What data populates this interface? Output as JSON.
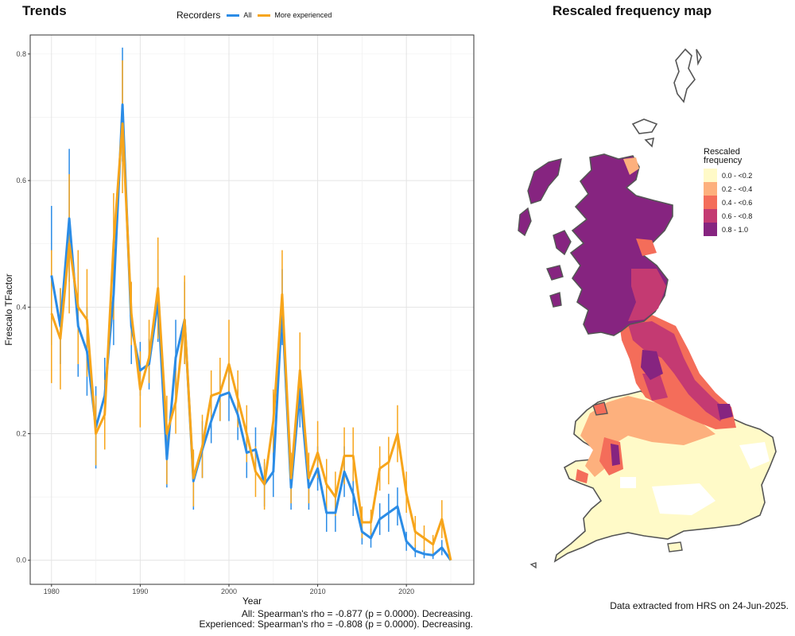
{
  "chart_title": "Trends",
  "map_title": "Rescaled frequency map",
  "caption": "Data extracted from HRS on 24-Jun-2025.",
  "stats": [
    "All: Spearman's rho = -0.877 (p = 0.0000). Decreasing.",
    "Experienced: Spearman's rho = -0.808 (p = 0.0000). Decreasing."
  ],
  "legend": {
    "title": "Recorders",
    "items": [
      "All",
      "More experienced"
    ]
  },
  "map_legend": {
    "title": "Rescaled frequency",
    "classes": [
      {
        "label": "0.0 - <0.2",
        "color": "#FFFAC8"
      },
      {
        "label": "0.2 - <0.4",
        "color": "#FDB07D"
      },
      {
        "label": "0.4 - <0.6",
        "color": "#F46D5A"
      },
      {
        "label": "0.6 - <0.8",
        "color": "#C43A72"
      },
      {
        "label": "0.8 - 1.0",
        "color": "#862480"
      }
    ]
  },
  "chart_data": {
    "type": "line",
    "xlabel": "Year",
    "ylabel": "Frescalo TFactor",
    "xlim": [
      1977.6,
      2027.6
    ],
    "ylim": [
      -0.038,
      0.83
    ],
    "xticks": [
      1980,
      1990,
      2000,
      2010,
      2020
    ],
    "yticks": [
      0.0,
      0.2,
      0.4,
      0.6,
      0.8
    ],
    "grid": true,
    "series": [
      {
        "name": "All",
        "color": "#2B8CE6",
        "points": [
          [
            1980,
            0.45,
            0.34,
            0.56
          ],
          [
            1981,
            0.37,
            0.31,
            0.43
          ],
          [
            1982,
            0.54,
            0.44,
            0.65
          ],
          [
            1983,
            0.37,
            0.29,
            0.45
          ],
          [
            1984,
            0.33,
            0.26,
            0.4
          ],
          [
            1985,
            0.21,
            0.145,
            0.275
          ],
          [
            1986,
            0.26,
            0.2,
            0.32
          ],
          [
            1987,
            0.42,
            0.34,
            0.51
          ],
          [
            1988,
            0.72,
            0.63,
            0.81
          ],
          [
            1989,
            0.37,
            0.31,
            0.44
          ],
          [
            1990,
            0.3,
            0.26,
            0.345
          ],
          [
            1991,
            0.31,
            0.27,
            0.35
          ],
          [
            1992,
            0.41,
            0.345,
            0.475
          ],
          [
            1993,
            0.16,
            0.115,
            0.205
          ],
          [
            1994,
            0.32,
            0.26,
            0.38
          ],
          [
            1995,
            0.38,
            0.31,
            0.44
          ],
          [
            1996,
            0.125,
            0.08,
            0.17
          ],
          [
            1997,
            0.175,
            0.13,
            0.22
          ],
          [
            1998,
            0.22,
            0.185,
            0.255
          ],
          [
            1999,
            0.26,
            0.22,
            0.3
          ],
          [
            2000,
            0.265,
            0.22,
            0.31
          ],
          [
            2001,
            0.23,
            0.19,
            0.27
          ],
          [
            2002,
            0.17,
            0.13,
            0.21
          ],
          [
            2003,
            0.175,
            0.14,
            0.21
          ],
          [
            2004,
            0.12,
            0.085,
            0.155
          ],
          [
            2005,
            0.14,
            0.1,
            0.18
          ],
          [
            2006,
            0.4,
            0.34,
            0.46
          ],
          [
            2007,
            0.115,
            0.08,
            0.155
          ],
          [
            2008,
            0.27,
            0.21,
            0.33
          ],
          [
            2009,
            0.115,
            0.08,
            0.15
          ],
          [
            2010,
            0.145,
            0.11,
            0.18
          ],
          [
            2011,
            0.075,
            0.045,
            0.105
          ],
          [
            2012,
            0.075,
            0.045,
            0.105
          ],
          [
            2013,
            0.14,
            0.1,
            0.18
          ],
          [
            2014,
            0.105,
            0.07,
            0.14
          ],
          [
            2015,
            0.045,
            0.025,
            0.065
          ],
          [
            2016,
            0.035,
            0.02,
            0.05
          ],
          [
            2017,
            0.065,
            0.04,
            0.09
          ],
          [
            2018,
            0.075,
            0.045,
            0.105
          ],
          [
            2019,
            0.085,
            0.055,
            0.115
          ],
          [
            2020,
            0.03,
            0.015,
            0.045
          ],
          [
            2021,
            0.015,
            0.005,
            0.025
          ],
          [
            2022,
            0.01,
            0.003,
            0.017
          ],
          [
            2023,
            0.008,
            0.002,
            0.014
          ],
          [
            2024,
            0.02,
            0.008,
            0.032
          ],
          [
            2025,
            0.0,
            0.0,
            0.0
          ]
        ]
      },
      {
        "name": "More experienced",
        "color": "#F7A51B",
        "points": [
          [
            1980,
            0.39,
            0.28,
            0.49
          ],
          [
            1981,
            0.35,
            0.27,
            0.43
          ],
          [
            1982,
            0.5,
            0.39,
            0.61
          ],
          [
            1983,
            0.4,
            0.31,
            0.49
          ],
          [
            1984,
            0.38,
            0.29,
            0.46
          ],
          [
            1985,
            0.2,
            0.15,
            0.26
          ],
          [
            1986,
            0.23,
            0.175,
            0.285
          ],
          [
            1987,
            0.5,
            0.38,
            0.58
          ],
          [
            1988,
            0.69,
            0.58,
            0.79
          ],
          [
            1989,
            0.39,
            0.34,
            0.44
          ],
          [
            1990,
            0.27,
            0.21,
            0.33
          ],
          [
            1991,
            0.32,
            0.28,
            0.38
          ],
          [
            1992,
            0.43,
            0.35,
            0.51
          ],
          [
            1993,
            0.2,
            0.12,
            0.26
          ],
          [
            1994,
            0.25,
            0.2,
            0.3
          ],
          [
            1995,
            0.38,
            0.31,
            0.45
          ],
          [
            1996,
            0.13,
            0.085,
            0.175
          ],
          [
            1997,
            0.18,
            0.13,
            0.23
          ],
          [
            1998,
            0.26,
            0.22,
            0.3
          ],
          [
            1999,
            0.265,
            0.22,
            0.32
          ],
          [
            2000,
            0.31,
            0.26,
            0.38
          ],
          [
            2001,
            0.255,
            0.21,
            0.3
          ],
          [
            2002,
            0.2,
            0.155,
            0.245
          ],
          [
            2003,
            0.14,
            0.1,
            0.18
          ],
          [
            2004,
            0.12,
            0.08,
            0.16
          ],
          [
            2005,
            0.22,
            0.17,
            0.27
          ],
          [
            2006,
            0.42,
            0.36,
            0.49
          ],
          [
            2007,
            0.13,
            0.09,
            0.17
          ],
          [
            2008,
            0.3,
            0.24,
            0.36
          ],
          [
            2009,
            0.13,
            0.09,
            0.17
          ],
          [
            2010,
            0.17,
            0.13,
            0.22
          ],
          [
            2011,
            0.12,
            0.08,
            0.16
          ],
          [
            2012,
            0.1,
            0.07,
            0.14
          ],
          [
            2013,
            0.165,
            0.12,
            0.21
          ],
          [
            2014,
            0.165,
            0.125,
            0.21
          ],
          [
            2015,
            0.06,
            0.035,
            0.085
          ],
          [
            2016,
            0.06,
            0.04,
            0.08
          ],
          [
            2017,
            0.145,
            0.11,
            0.18
          ],
          [
            2018,
            0.155,
            0.12,
            0.195
          ],
          [
            2019,
            0.2,
            0.155,
            0.245
          ],
          [
            2020,
            0.105,
            0.075,
            0.14
          ],
          [
            2021,
            0.045,
            0.02,
            0.07
          ],
          [
            2022,
            0.035,
            0.015,
            0.055
          ],
          [
            2023,
            0.025,
            0.01,
            0.04
          ],
          [
            2024,
            0.065,
            0.035,
            0.095
          ],
          [
            2025,
            0.0,
            0.0,
            0.0
          ]
        ]
      }
    ]
  }
}
